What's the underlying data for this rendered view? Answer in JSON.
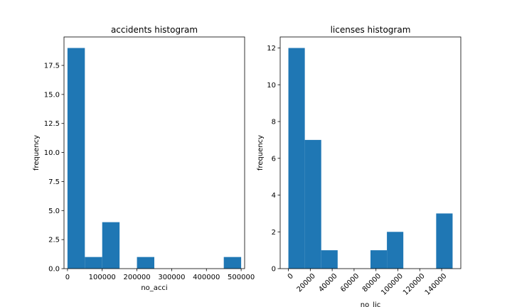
{
  "chart_data": [
    {
      "type": "bar",
      "title": "accidents histogram",
      "xlabel": "no_acci",
      "ylabel": "frequency",
      "bins": [
        {
          "start": 0,
          "end": 50000,
          "count": 19
        },
        {
          "start": 50000,
          "end": 100000,
          "count": 1
        },
        {
          "start": 100000,
          "end": 150000,
          "count": 4
        },
        {
          "start": 150000,
          "end": 200000,
          "count": 0
        },
        {
          "start": 200000,
          "end": 250000,
          "count": 1
        },
        {
          "start": 250000,
          "end": 300000,
          "count": 0
        },
        {
          "start": 300000,
          "end": 350000,
          "count": 0
        },
        {
          "start": 350000,
          "end": 400000,
          "count": 0
        },
        {
          "start": 400000,
          "end": 450000,
          "count": 0
        },
        {
          "start": 450000,
          "end": 500000,
          "count": 1
        }
      ],
      "xlim": [
        -10000,
        510000
      ],
      "ylim": [
        0,
        19.95
      ],
      "xticks": [
        0,
        100000,
        200000,
        300000,
        400000,
        500000
      ],
      "xtick_labels": [
        "0",
        "100000",
        "200000",
        "300000",
        "400000",
        "500000"
      ],
      "yticks": [
        0,
        2.5,
        5,
        7.5,
        10,
        12.5,
        15,
        17.5
      ],
      "ytick_labels": [
        "0.0",
        "2.5",
        "5.0",
        "7.5",
        "10.0",
        "12.5",
        "15.0",
        "17.5"
      ],
      "xtick_rotation": 0,
      "bar_color": "#1f77b4"
    },
    {
      "type": "bar",
      "title": "licenses histogram",
      "xlabel": "no_lic",
      "ylabel": "frequency",
      "bins": [
        {
          "start": 0,
          "end": 15000,
          "count": 12
        },
        {
          "start": 15000,
          "end": 30000,
          "count": 7
        },
        {
          "start": 30000,
          "end": 45000,
          "count": 1
        },
        {
          "start": 45000,
          "end": 60000,
          "count": 0
        },
        {
          "start": 60000,
          "end": 75000,
          "count": 0
        },
        {
          "start": 75000,
          "end": 90000,
          "count": 1
        },
        {
          "start": 90000,
          "end": 105000,
          "count": 2
        },
        {
          "start": 105000,
          "end": 120000,
          "count": 0
        },
        {
          "start": 120000,
          "end": 135000,
          "count": 0
        },
        {
          "start": 135000,
          "end": 150000,
          "count": 3
        }
      ],
      "xlim": [
        -7500,
        157500
      ],
      "ylim": [
        0,
        12.6
      ],
      "xticks": [
        0,
        20000,
        40000,
        60000,
        80000,
        100000,
        120000,
        140000
      ],
      "xtick_labels": [
        "0",
        "20000",
        "40000",
        "60000",
        "80000",
        "100000",
        "120000",
        "140000"
      ],
      "yticks": [
        0,
        2,
        4,
        6,
        8,
        10,
        12
      ],
      "ytick_labels": [
        "0",
        "2",
        "4",
        "6",
        "8",
        "10",
        "12"
      ],
      "xtick_rotation": -45,
      "bar_color": "#1f77b4"
    }
  ]
}
